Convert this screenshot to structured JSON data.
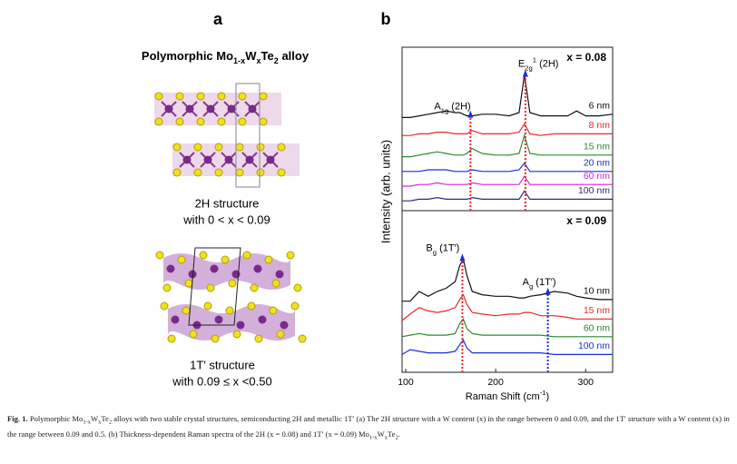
{
  "figure": {
    "panel_a": {
      "letter": "a",
      "title_parts": [
        {
          "text": "Polymorphic Mo"
        },
        {
          "sub": "1-x"
        },
        {
          "text": "W"
        },
        {
          "sub": "x"
        },
        {
          "text": "Te"
        },
        {
          "sub": "2"
        },
        {
          "text": " alloy"
        }
      ],
      "structures": [
        {
          "name": "2H structure",
          "range": "with 0 < x < 0.09"
        },
        {
          "name": "1T′ structure",
          "range": "with 0.09 ≤ x <0.50"
        }
      ]
    },
    "panel_b": {
      "letter": "b"
    },
    "caption_parts": [
      {
        "bold": "Fig. 1."
      },
      {
        "text": "  Polymorphic Mo"
      },
      {
        "sub": "1-x"
      },
      {
        "text": "W"
      },
      {
        "sub": "x"
      },
      {
        "text": "Te"
      },
      {
        "sub": "2"
      },
      {
        "text": " alloys with two stable crystal structures, semiconducting 2H and metallic 1T′ (a) The 2H structure with a W content (x) in the range between 0 and 0.09, and the 1T′ structure with a W content (x) in the range between 0.09 and 0.5. (b) Thickness-dependent Raman spectra of the 2H (x = 0.08) and 1T′ (x = 0.09) Mo"
      },
      {
        "sub": "1-x"
      },
      {
        "text": "W"
      },
      {
        "sub": "x"
      },
      {
        "text": "Te"
      },
      {
        "sub": "2"
      },
      {
        "text": "."
      }
    ]
  },
  "chart_data": [
    {
      "type": "line",
      "panel_label": "x = 0.08",
      "ylabel": "Intensity (arb. units)",
      "x": [
        96,
        105,
        115,
        125,
        135,
        145,
        155,
        160,
        164,
        168,
        174,
        185,
        200,
        215,
        226,
        232,
        238,
        250,
        265,
        280,
        290,
        300,
        315,
        330
      ],
      "xlim": [
        96,
        330
      ],
      "ylim": [
        0,
        100
      ],
      "series": [
        {
          "name": "6 nm",
          "color": "#111111",
          "values": [
            57,
            57,
            58,
            59,
            60,
            61,
            60,
            60,
            59,
            58,
            58,
            59,
            59,
            58,
            60,
            83,
            60,
            58,
            58,
            58,
            61,
            58,
            58,
            59
          ]
        },
        {
          "name": "8 nm",
          "color": "#e8262a",
          "values": [
            46,
            46,
            47,
            47,
            48,
            48,
            47,
            47,
            47,
            47,
            49,
            47,
            47,
            47,
            48,
            53,
            47,
            46,
            47,
            47,
            47,
            47,
            47,
            47
          ]
        },
        {
          "name": "15 nm",
          "color": "#2a8a2a",
          "values": [
            33,
            33,
            34,
            35,
            36,
            35,
            34,
            34,
            34,
            35,
            38,
            35,
            34,
            34,
            35,
            46,
            35,
            34,
            34,
            34,
            34,
            34,
            34,
            34
          ]
        },
        {
          "name": "20 nm",
          "color": "#1c2fd8",
          "values": [
            24,
            24,
            24,
            25,
            25,
            25,
            24,
            24,
            24,
            24,
            25,
            24,
            24,
            24,
            25,
            29,
            24,
            24,
            24,
            24,
            24,
            24,
            24,
            24
          ]
        },
        {
          "name": "60 nm",
          "color": "#e020e0",
          "values": [
            15,
            15,
            16,
            16,
            17,
            16,
            16,
            16,
            16,
            16,
            17,
            16,
            16,
            16,
            16,
            21,
            16,
            16,
            16,
            16,
            16,
            16,
            16,
            16
          ]
        },
        {
          "name": "100 nm",
          "color": "#2a2a8a",
          "values": [
            6,
            6,
            7,
            7,
            8,
            7,
            7,
            7,
            7,
            7,
            8,
            7,
            7,
            7,
            7,
            12,
            7,
            7,
            7,
            7,
            7,
            7,
            7,
            7
          ]
        }
      ],
      "annotations": [
        {
          "parts": [
            {
              "text": "A"
            },
            {
              "sub": "1g"
            },
            {
              "text": " (2H)"
            }
          ],
          "x": 172,
          "top": 58,
          "color": "#e8262a"
        },
        {
          "parts": [
            {
              "text": "E"
            },
            {
              "sub": "2g"
            },
            {
              "sup": "1"
            },
            {
              "text": " (2H)"
            }
          ],
          "x": 233,
          "top": 83,
          "color": "#e8262a"
        }
      ]
    },
    {
      "type": "line",
      "panel_label": "x = 0.09",
      "xlabel_parts": [
        {
          "text": "Raman Shift (cm"
        },
        {
          "sup": "-1"
        },
        {
          "text": ")"
        }
      ],
      "x": [
        96,
        105,
        115,
        125,
        135,
        145,
        155,
        160,
        164,
        168,
        174,
        185,
        200,
        215,
        226,
        232,
        238,
        250,
        265,
        280,
        290,
        300,
        315,
        330
      ],
      "xlim": [
        96,
        330
      ],
      "ylim": [
        0,
        100
      ],
      "xticks": [
        100,
        200,
        300
      ],
      "series": [
        {
          "name": "10 nm",
          "color": "#111111",
          "values": [
            44,
            44,
            50,
            47,
            50,
            52,
            56,
            66,
            70,
            60,
            50,
            48,
            47,
            47,
            46,
            46,
            47,
            48,
            50,
            49,
            47,
            46,
            45,
            45
          ]
        },
        {
          "name": "15 nm",
          "color": "#e8262a",
          "values": [
            32,
            36,
            40,
            38,
            37,
            38,
            40,
            45,
            48,
            42,
            37,
            36,
            35,
            36,
            36,
            37,
            37,
            35,
            35,
            34,
            33,
            33,
            33,
            33
          ]
        },
        {
          "name": "60 nm",
          "color": "#2a8a2a",
          "values": [
            22,
            23,
            24,
            23,
            23,
            23,
            24,
            30,
            33,
            27,
            24,
            23,
            23,
            23,
            23,
            23,
            23,
            23,
            22,
            22,
            22,
            22,
            22,
            22
          ]
        },
        {
          "name": "100 nm",
          "color": "#1c2fd8",
          "values": [
            11,
            14,
            13,
            12,
            12,
            12,
            13,
            17,
            20,
            15,
            12,
            12,
            12,
            12,
            12,
            12,
            12,
            12,
            11,
            11,
            11,
            11,
            11,
            11
          ]
        }
      ],
      "annotations": [
        {
          "parts": [
            {
              "text": "B"
            },
            {
              "sub": "g"
            },
            {
              "text": " (1T′)"
            }
          ],
          "x": 163,
          "top": 70,
          "color": "#e8262a"
        },
        {
          "parts": [
            {
              "text": "A"
            },
            {
              "sub": "g"
            },
            {
              "text": " (1T′)"
            }
          ],
          "x": 258,
          "top": 49,
          "color": "#1c2fd8"
        }
      ]
    }
  ]
}
